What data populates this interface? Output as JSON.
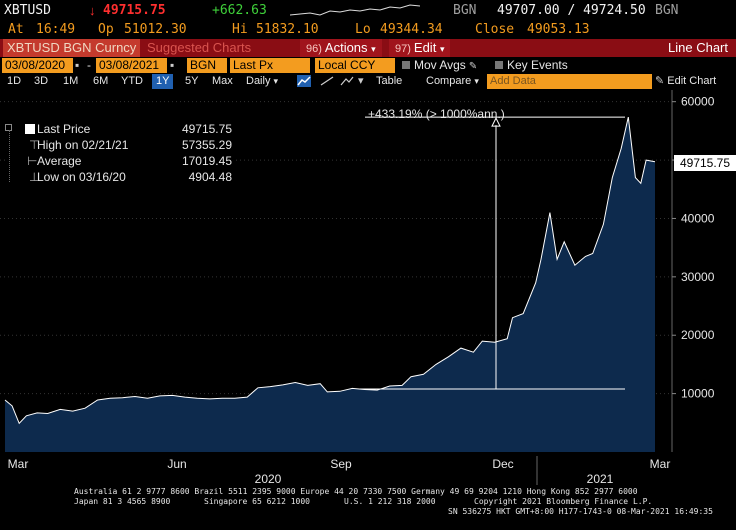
{
  "quote": {
    "ticker": "XBTUSD",
    "arrow": "↓",
    "last": "49715.75",
    "change": "+662.63",
    "source": "BGN",
    "bid_ask": "49707.00 / 49724.50",
    "source2": "BGN",
    "at_label": "At",
    "at_time": "16:49",
    "op_label": "Op",
    "open": "51012.30",
    "hi_label": "Hi",
    "high": "51832.10",
    "lo_label": "Lo",
    "low": "49344.34",
    "close_label": "Close",
    "close": "49053.13"
  },
  "title_bar": {
    "ticker_title": "XBTUSD BGN Curncy",
    "suggested": "Suggested Charts",
    "actions_num": "96)",
    "actions": "Actions",
    "edit_num": "97)",
    "edit": "Edit",
    "chart_type": "Line Chart"
  },
  "settings": {
    "start_date": "03/08/2020",
    "end_date": "03/08/2021",
    "source": "BGN",
    "field": "Last Px",
    "currency": "Local CCY",
    "mov_avgs": "Mov Avgs",
    "key_events": "Key Events"
  },
  "toolbar": {
    "periods": [
      "1D",
      "3D",
      "1M",
      "6M",
      "YTD",
      "1Y",
      "5Y",
      "Max"
    ],
    "selected_period": "1Y",
    "frequency": "Daily",
    "table": "Table",
    "compare": "Compare",
    "add_data_placeholder": "Add Data",
    "edit_chart": "Edit Chart"
  },
  "legend": {
    "last_price_label": "Last Price",
    "last_price_value": "49715.75",
    "high_label": "High on 02/21/21",
    "high_value": "57355.29",
    "average_label": "Average",
    "average_value": "17019.45",
    "low_label": "Low on 03/16/20",
    "low_value": "4904.48"
  },
  "annotation": "+433.19% (> 1000%ann.)",
  "last_price_tag": "49715.75",
  "chart_data": {
    "type": "area",
    "x_ticks": [
      "Mar",
      "Jun",
      "Sep",
      "Dec",
      "Mar"
    ],
    "year_labels": [
      "2020",
      "2021"
    ],
    "y_ticks": [
      10000,
      20000,
      30000,
      40000,
      50000,
      60000
    ],
    "y_tick_labels": [
      "10000",
      "20000",
      "30000",
      "40000",
      "50000",
      "60000"
    ],
    "ylim": [
      0,
      62000
    ],
    "xlim": [
      "2020-03-08",
      "2021-03-08"
    ],
    "series": [
      {
        "color": "#ffffff",
        "fill": "#0d2a4d",
        "x": [
          "2020-03-08",
          "2020-03-12",
          "2020-03-16",
          "2020-03-20",
          "2020-03-26",
          "2020-04-01",
          "2020-04-08",
          "2020-04-15",
          "2020-04-22",
          "2020-04-29",
          "2020-05-06",
          "2020-05-13",
          "2020-05-20",
          "2020-05-27",
          "2020-06-03",
          "2020-06-10",
          "2020-06-17",
          "2020-06-24",
          "2020-07-01",
          "2020-07-08",
          "2020-07-15",
          "2020-07-22",
          "2020-07-28",
          "2020-08-04",
          "2020-08-11",
          "2020-08-18",
          "2020-08-25",
          "2020-09-01",
          "2020-09-05",
          "2020-09-12",
          "2020-09-19",
          "2020-09-26",
          "2020-10-03",
          "2020-10-10",
          "2020-10-17",
          "2020-10-22",
          "2020-10-29",
          "2020-11-05",
          "2020-11-12",
          "2020-11-19",
          "2020-11-26",
          "2020-12-01",
          "2020-12-08",
          "2020-12-15",
          "2020-12-18",
          "2020-12-24",
          "2020-12-31",
          "2021-01-03",
          "2021-01-08",
          "2021-01-12",
          "2021-01-16",
          "2021-01-22",
          "2021-01-28",
          "2021-02-01",
          "2021-02-07",
          "2021-02-12",
          "2021-02-17",
          "2021-02-21",
          "2021-02-25",
          "2021-02-28",
          "2021-03-03",
          "2021-03-08"
        ],
        "y": [
          8900,
          7900,
          4904,
          6200,
          6700,
          6600,
          7300,
          7000,
          7500,
          8900,
          9200,
          9300,
          9500,
          9200,
          9600,
          9700,
          9400,
          9200,
          9100,
          9200,
          9200,
          9400,
          11000,
          11200,
          11500,
          11900,
          11400,
          11700,
          10300,
          10400,
          10900,
          10700,
          10600,
          11300,
          11400,
          12900,
          13300,
          15000,
          16300,
          17800,
          17100,
          19000,
          18800,
          19400,
          23000,
          23700,
          29000,
          33000,
          41000,
          33000,
          36000,
          32000,
          33500,
          34000,
          39000,
          47000,
          52000,
          57355,
          47000,
          46000,
          50000,
          49716
        ]
      }
    ]
  },
  "footer": {
    "line1": "Australia 61 2 9777 8600 Brazil 5511 2395 9000 Europe 44 20 7330 7500 Germany 49 69 9204 1210 Hong Kong 852 2977 6000",
    "line2a": "Japan 81 3 4565 8900",
    "line2b": "Singapore 65 6212 1000",
    "line2c": "U.S. 1 212 318 2000",
    "line2d": "Copyright 2021 Bloomberg Finance L.P.",
    "line3": "SN 536275 HKT  GMT+8:00 H177-1743-0 08-Mar-2021 16:49:35"
  }
}
